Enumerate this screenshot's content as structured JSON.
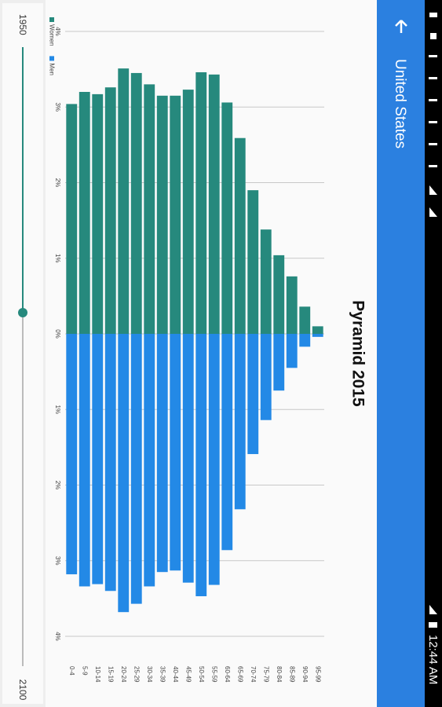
{
  "status_bar": {
    "time": "12:44 AM"
  },
  "app_bar": {
    "title": "United States"
  },
  "slider": {
    "start": "1950",
    "end": "2100"
  },
  "chart_data": {
    "type": "pyramid",
    "title": "Pyramid 2015",
    "categories": [
      "0-4",
      "5-9",
      "10-14",
      "15-19",
      "20-24",
      "25-29",
      "30-34",
      "35-39",
      "40-44",
      "45-49",
      "50-54",
      "55-59",
      "60-64",
      "65-69",
      "70-74",
      "75-79",
      "80-84",
      "85-89",
      "90-94",
      "95-99"
    ],
    "series": [
      {
        "name": "Women",
        "color": "#26897d",
        "values": [
          3.04,
          3.2,
          3.17,
          3.26,
          3.51,
          3.45,
          3.3,
          3.15,
          3.15,
          3.23,
          3.46,
          3.43,
          3.06,
          2.59,
          1.9,
          1.38,
          1.04,
          0.76,
          0.36,
          0.1
        ]
      },
      {
        "name": "Men",
        "color": "#2389e6",
        "values": [
          3.18,
          3.34,
          3.31,
          3.4,
          3.68,
          3.57,
          3.34,
          3.15,
          3.13,
          3.29,
          3.47,
          3.32,
          2.86,
          2.32,
          1.59,
          1.14,
          0.75,
          0.45,
          0.17,
          0.04
        ]
      }
    ],
    "xlim": [
      -4,
      4
    ],
    "xticks": [
      {
        "value": -4,
        "label": "4%"
      },
      {
        "value": -3,
        "label": "3%"
      },
      {
        "value": -2,
        "label": "2%"
      },
      {
        "value": -1,
        "label": "1%"
      },
      {
        "value": 0,
        "label": "0%"
      },
      {
        "value": 1,
        "label": "1%"
      },
      {
        "value": 2,
        "label": "2%"
      },
      {
        "value": 3,
        "label": "3%"
      },
      {
        "value": 4,
        "label": "4%"
      }
    ],
    "grid": true
  }
}
